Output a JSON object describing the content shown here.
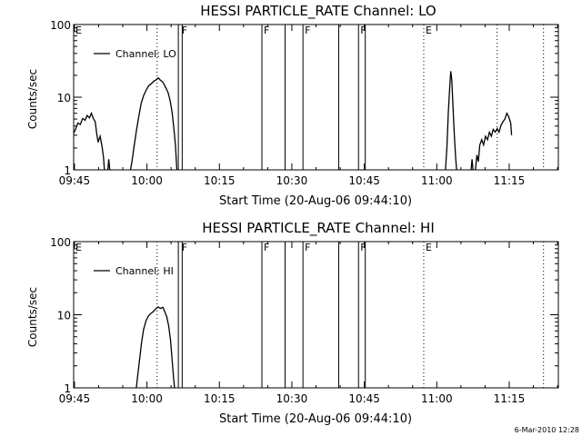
{
  "footer_timestamp": "6-Mar-2010 12:28",
  "chart_data": [
    {
      "type": "line",
      "title": "HESSI PARTICLE_RATE Channel: LO",
      "xlabel": "Start Time (20-Aug-06 09:44:10)",
      "ylabel": "Counts/sec",
      "yscale": "log",
      "ylim": [
        1,
        100
      ],
      "xlim_minutes": [
        -0.17,
        100.17
      ],
      "xticks": [
        {
          "label": "09:45",
          "minute": 0
        },
        {
          "label": "10:00",
          "minute": 15
        },
        {
          "label": "10:15",
          "minute": 30
        },
        {
          "label": "10:30",
          "minute": 45
        },
        {
          "label": "10:45",
          "minute": 60
        },
        {
          "label": "11:00",
          "minute": 75
        },
        {
          "label": "11:15",
          "minute": 90
        }
      ],
      "yticks": [
        {
          "label": "1",
          "value": 1
        },
        {
          "label": "10",
          "value": 10
        },
        {
          "label": "100",
          "value": 100
        }
      ],
      "legend": {
        "label": "Channel: LO",
        "position": "top-left"
      },
      "grid": false,
      "flags": [
        {
          "label": "E",
          "minute": -0.17
        },
        {
          "label": "F",
          "minute": 21.8
        },
        {
          "label": "F",
          "minute": 38.8
        },
        {
          "label": "F",
          "minute": 47.3
        },
        {
          "label": "F",
          "minute": 58.8
        },
        {
          "label": "E",
          "minute": 72.3
        }
      ],
      "event_lines": [
        {
          "minute": 21.5,
          "style": "solid"
        },
        {
          "minute": 22.3,
          "style": "solid"
        },
        {
          "minute": 38.8,
          "style": "solid"
        },
        {
          "minute": 43.6,
          "style": "solid"
        },
        {
          "minute": 47.3,
          "style": "solid"
        },
        {
          "minute": 54.7,
          "style": "solid"
        },
        {
          "minute": 58.8,
          "style": "solid"
        },
        {
          "minute": 60.2,
          "style": "solid"
        },
        {
          "minute": 17.1,
          "style": "dotted"
        },
        {
          "minute": 72.3,
          "style": "dotted"
        },
        {
          "minute": 87.5,
          "style": "dotted"
        },
        {
          "minute": 97.1,
          "style": "dotted"
        }
      ],
      "series": [
        {
          "name": "Channel: LO",
          "segments": [
            [
              [
                -0.17,
                3.2
              ],
              [
                0.2,
                3.6
              ],
              [
                0.7,
                4.4
              ],
              [
                1.2,
                4.2
              ],
              [
                1.7,
                5.1
              ],
              [
                2.2,
                4.8
              ],
              [
                2.6,
                5.6
              ],
              [
                3.1,
                5.2
              ],
              [
                3.5,
                6.0
              ],
              [
                3.9,
                5.1
              ],
              [
                4.3,
                4.6
              ],
              [
                4.6,
                3.2
              ],
              [
                4.9,
                2.4
              ],
              [
                5.3,
                2.9
              ],
              [
                5.7,
                2.1
              ],
              [
                6.0,
                1.5
              ],
              [
                6.2,
                1.0
              ]
            ],
            [
              [
                6.9,
                1.0
              ],
              [
                7.1,
                1.4
              ],
              [
                7.3,
                1.0
              ]
            ],
            [
              [
                11.6,
                1.0
              ],
              [
                11.9,
                1.3
              ],
              [
                12.3,
                2.0
              ],
              [
                12.8,
                3.4
              ],
              [
                13.3,
                5.4
              ],
              [
                13.8,
                8.2
              ],
              [
                14.3,
                10.5
              ],
              [
                14.9,
                12.8
              ],
              [
                15.4,
                14.5
              ],
              [
                15.9,
                15.3
              ],
              [
                16.4,
                16.6
              ],
              [
                16.9,
                17.4
              ],
              [
                17.4,
                18.4
              ],
              [
                17.8,
                17.1
              ],
              [
                18.2,
                16.4
              ],
              [
                18.6,
                14.8
              ],
              [
                19.0,
                13.2
              ],
              [
                19.4,
                11.4
              ],
              [
                19.8,
                8.9
              ],
              [
                20.2,
                6.3
              ],
              [
                20.6,
                3.6
              ],
              [
                20.9,
                2.2
              ],
              [
                21.2,
                1.0
              ]
            ],
            [
              [
                76.8,
                1.0
              ],
              [
                77.1,
                2.1
              ],
              [
                77.4,
                6.2
              ],
              [
                77.7,
                14.1
              ],
              [
                77.9,
                22.8
              ],
              [
                78.1,
                17.4
              ],
              [
                78.3,
                9.2
              ],
              [
                78.6,
                3.4
              ],
              [
                78.9,
                1.5
              ],
              [
                79.1,
                1.0
              ]
            ],
            [
              [
                82.1,
                1.0
              ],
              [
                82.3,
                1.4
              ],
              [
                82.5,
                1.0
              ]
            ],
            [
              [
                83.0,
                1.0
              ],
              [
                83.3,
                1.6
              ],
              [
                83.6,
                1.3
              ],
              [
                83.9,
                2.2
              ],
              [
                84.3,
                2.6
              ],
              [
                84.7,
                2.2
              ],
              [
                85.1,
                2.9
              ],
              [
                85.5,
                2.6
              ],
              [
                85.9,
                3.3
              ],
              [
                86.3,
                2.9
              ],
              [
                86.7,
                3.6
              ],
              [
                87.1,
                3.3
              ],
              [
                87.5,
                3.7
              ],
              [
                87.9,
                3.3
              ],
              [
                88.3,
                4.1
              ],
              [
                88.7,
                4.6
              ],
              [
                89.1,
                5.0
              ],
              [
                89.5,
                6.0
              ],
              [
                89.9,
                5.4
              ],
              [
                90.3,
                4.4
              ],
              [
                90.5,
                3.0
              ]
            ]
          ]
        }
      ]
    },
    {
      "type": "line",
      "title": "HESSI PARTICLE_RATE Channel: HI",
      "xlabel": "Start Time (20-Aug-06 09:44:10)",
      "ylabel": "Counts/sec",
      "yscale": "log",
      "ylim": [
        1,
        100
      ],
      "xlim_minutes": [
        -0.17,
        100.17
      ],
      "xticks": [
        {
          "label": "09:45",
          "minute": 0
        },
        {
          "label": "10:00",
          "minute": 15
        },
        {
          "label": "10:15",
          "minute": 30
        },
        {
          "label": "10:30",
          "minute": 45
        },
        {
          "label": "10:45",
          "minute": 60
        },
        {
          "label": "11:00",
          "minute": 75
        },
        {
          "label": "11:15",
          "minute": 90
        }
      ],
      "yticks": [
        {
          "label": "1",
          "value": 1
        },
        {
          "label": "10",
          "value": 10
        },
        {
          "label": "100",
          "value": 100
        }
      ],
      "legend": {
        "label": "Channel: HI",
        "position": "top-left"
      },
      "grid": false,
      "flags": [
        {
          "label": "E",
          "minute": -0.17
        },
        {
          "label": "F",
          "minute": 21.8
        },
        {
          "label": "F",
          "minute": 38.8
        },
        {
          "label": "F",
          "minute": 47.3
        },
        {
          "label": "F",
          "minute": 58.8
        },
        {
          "label": "E",
          "minute": 72.3
        }
      ],
      "event_lines": [
        {
          "minute": 21.5,
          "style": "solid"
        },
        {
          "minute": 22.3,
          "style": "solid"
        },
        {
          "minute": 38.8,
          "style": "solid"
        },
        {
          "minute": 43.6,
          "style": "solid"
        },
        {
          "minute": 47.3,
          "style": "solid"
        },
        {
          "minute": 54.7,
          "style": "solid"
        },
        {
          "minute": 58.8,
          "style": "solid"
        },
        {
          "minute": 60.2,
          "style": "solid"
        },
        {
          "minute": 17.1,
          "style": "dotted"
        },
        {
          "minute": 72.3,
          "style": "dotted"
        },
        {
          "minute": 97.1,
          "style": "dotted"
        }
      ],
      "series": [
        {
          "name": "Channel: HI",
          "segments": [
            [
              [
                12.8,
                1.0
              ],
              [
                13.1,
                1.5
              ],
              [
                13.5,
                2.5
              ],
              [
                13.9,
                4.2
              ],
              [
                14.3,
                6.3
              ],
              [
                14.8,
                8.2
              ],
              [
                15.3,
                9.6
              ],
              [
                15.8,
                10.4
              ],
              [
                16.3,
                11.0
              ],
              [
                16.8,
                12.0
              ],
              [
                17.3,
                12.8
              ],
              [
                17.8,
                12.2
              ],
              [
                18.3,
                12.6
              ],
              [
                18.7,
                11.0
              ],
              [
                19.1,
                9.4
              ],
              [
                19.5,
                7.0
              ],
              [
                19.9,
                4.4
              ],
              [
                20.2,
                2.5
              ],
              [
                20.5,
                1.4
              ],
              [
                20.7,
                1.0
              ]
            ]
          ]
        }
      ]
    }
  ]
}
